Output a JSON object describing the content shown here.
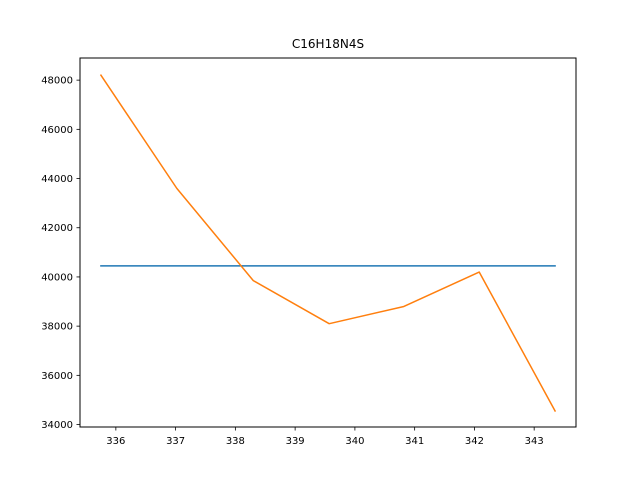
{
  "chart_data": {
    "type": "line",
    "title": "C16H18N4S",
    "xlabel": "",
    "ylabel": "",
    "xlim": [
      335.4,
      343.7
    ],
    "ylim": [
      33900,
      48900
    ],
    "x_ticks": [
      336,
      337,
      338,
      339,
      340,
      341,
      342,
      343
    ],
    "y_ticks": [
      34000,
      36000,
      38000,
      40000,
      42000,
      44000,
      46000,
      48000
    ],
    "grid": false,
    "series": [
      {
        "color": "#1f77b4",
        "x": [
          335.75,
          343.35
        ],
        "y": [
          40450,
          40450
        ]
      },
      {
        "color": "#ff7f0e",
        "x": [
          335.75,
          337.02,
          338.3,
          339.57,
          340.82,
          342.08,
          343.35
        ],
        "y": [
          48200,
          43600,
          39850,
          38100,
          38800,
          40200,
          34550
        ]
      }
    ]
  }
}
